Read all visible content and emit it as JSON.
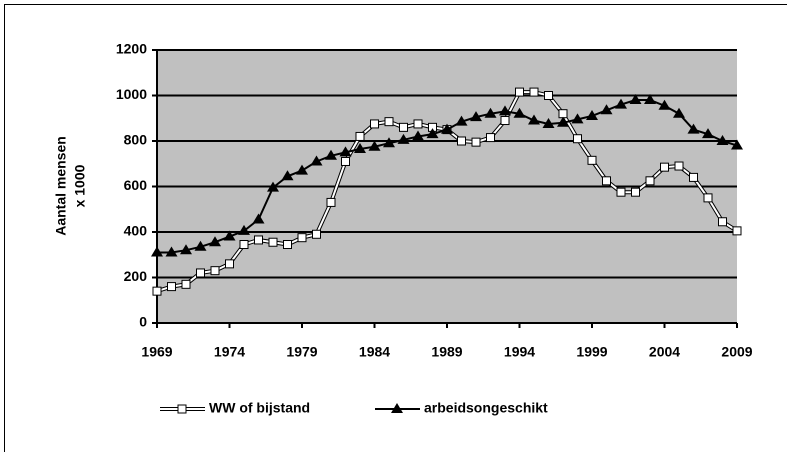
{
  "chart_data": {
    "type": "line",
    "ylabel": [
      "Aantal mensen",
      "x 1000"
    ],
    "x": [
      1969,
      1970,
      1971,
      1972,
      1973,
      1974,
      1975,
      1976,
      1977,
      1978,
      1979,
      1980,
      1981,
      1982,
      1983,
      1984,
      1985,
      1986,
      1987,
      1988,
      1989,
      1990,
      1991,
      1992,
      1993,
      1994,
      1995,
      1996,
      1997,
      1998,
      1999,
      2000,
      2001,
      2002,
      2003,
      2004,
      2005,
      2006,
      2007,
      2008,
      2009
    ],
    "series": [
      {
        "name": "WW of bijstand",
        "color": "#ffffff",
        "marker": "square",
        "values": [
          140,
          160,
          170,
          220,
          230,
          260,
          345,
          365,
          355,
          345,
          375,
          390,
          530,
          710,
          820,
          875,
          885,
          860,
          875,
          860,
          850,
          800,
          795,
          815,
          890,
          1015,
          1015,
          1000,
          920,
          810,
          715,
          625,
          575,
          575,
          625,
          685,
          690,
          640,
          550,
          445,
          405
        ]
      },
      {
        "name": "arbeidsongeschikt",
        "color": "#000000",
        "marker": "triangle",
        "values": [
          310,
          310,
          320,
          335,
          355,
          380,
          405,
          455,
          595,
          645,
          670,
          710,
          735,
          750,
          765,
          775,
          790,
          805,
          820,
          830,
          850,
          885,
          905,
          920,
          930,
          920,
          890,
          875,
          880,
          895,
          910,
          935,
          960,
          980,
          980,
          955,
          920,
          850,
          830,
          800,
          780
        ]
      }
    ],
    "xlim": [
      1969,
      2009
    ],
    "xticks": [
      1969,
      1974,
      1979,
      1984,
      1989,
      1994,
      1999,
      2004,
      2009
    ],
    "ylim": [
      0,
      1200
    ],
    "yticks": [
      0,
      200,
      400,
      600,
      800,
      1000,
      1200
    ],
    "grid": true,
    "plot_background": "#c0c0c0",
    "legend": "bottom"
  }
}
